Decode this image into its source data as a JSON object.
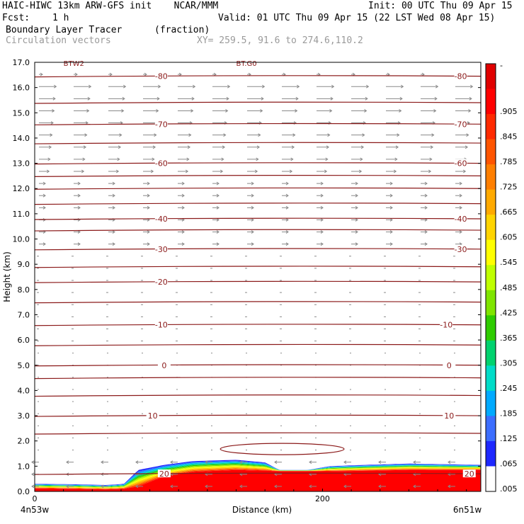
{
  "header": {
    "title_left": "HAIC-HIWC 13km ARW-GFS init    NCAR/MMM",
    "init": "Init: 00 UTC Thu 09 Apr 15",
    "fcst_label": "Fcst:",
    "fcst_value": "1 h",
    "valid": "Valid: 01 UTC Thu 09 Apr 15 (22 LST Wed 08 Apr 15)",
    "field_name": "Boundary Layer Tracer",
    "field_units": "(fraction)",
    "vectors_label": "Circulation vectors",
    "xy_label": "XY= 259.5, 91.6 to 274.6,110.2"
  },
  "chart_data": {
    "type": "heatmap",
    "title": "Boundary Layer Tracer",
    "xlabel": "Distance (km)",
    "ylabel": "Height (km)",
    "xlim": [
      0,
      310
    ],
    "ylim": [
      0,
      17
    ],
    "x_ticks": [
      {
        "v": 0,
        "label": "0"
      },
      {
        "v": 200,
        "label": "200"
      }
    ],
    "y_ticks": [
      "0.0",
      "1.0",
      "2.0",
      "3.0",
      "4.0",
      "5.0",
      "6.0",
      "7.0",
      "8.0",
      "9.0",
      "10.0",
      "11.0",
      "12.0",
      "13.0",
      "14.0",
      "15.0",
      "16.0",
      "17.0"
    ],
    "x_end_labels": {
      "left": "4n53w",
      "right": "6n51w"
    },
    "colorbar": {
      "labels": [
        "-",
        ".905",
        ".845",
        ".785",
        ".725",
        ".665",
        ".605",
        ".545",
        ".485",
        ".425",
        ".365",
        ".305",
        ".245",
        ".185",
        ".125",
        ".065",
        ".005"
      ],
      "colors": [
        "#e00000",
        "#ff0000",
        "#ff2a00",
        "#ff5500",
        "#ff7f00",
        "#ffaa00",
        "#ffd400",
        "#ffff00",
        "#bfff00",
        "#7fe500",
        "#2ecc00",
        "#00d26e",
        "#00dcc8",
        "#00aaff",
        "#3c6eff",
        "#1e28ff",
        "#ffffff"
      ]
    },
    "temperature_contours_C": [
      {
        "value": "-80",
        "y": 16.45,
        "labels_x": [
          88,
          296
        ]
      },
      {
        "value": "-70",
        "y": 14.55,
        "labels_x": [
          88,
          296
        ]
      },
      {
        "value": "-60",
        "y": 13.0,
        "labels_x": [
          88,
          296
        ]
      },
      {
        "value": "-40",
        "y": 10.8,
        "labels_x": [
          88,
          296
        ]
      },
      {
        "value": "-30",
        "y": 9.6,
        "labels_x": [
          88,
          296
        ]
      },
      {
        "value": "-20",
        "y": 8.3,
        "labels_x": [
          88,
          null
        ]
      },
      {
        "value": "-10",
        "y": 6.6,
        "labels_x": [
          88,
          286
        ]
      },
      {
        "value": "0",
        "y": 5.0,
        "labels_x": [
          90,
          288
        ]
      },
      {
        "value": "10",
        "y": 3.0,
        "labels_x": [
          82,
          288
        ]
      },
      {
        "value": "20",
        "y": 0.7,
        "labels_x": [
          90,
          302
        ]
      }
    ],
    "unlabeled_contour_levels": [
      15.4,
      13.8,
      12.5,
      12.0,
      11.4,
      10.35,
      8.9,
      7.5,
      5.8,
      4.5,
      3.8,
      2.3
    ],
    "top_labels": [
      "BTW2",
      "BT.G0"
    ],
    "tracer_profile": {
      "x_km": [
        0,
        30,
        50,
        62,
        72,
        90,
        110,
        140,
        160,
        170,
        190,
        205,
        230,
        260,
        310
      ],
      "top_km": [
        0.3,
        0.28,
        0.25,
        0.3,
        0.85,
        1.05,
        1.2,
        1.25,
        1.15,
        0.85,
        0.85,
        1.0,
        1.05,
        1.1,
        1.05
      ],
      "red_top_km": [
        0.12,
        0.1,
        0.08,
        0.1,
        0.2,
        0.6,
        0.78,
        0.85,
        0.82,
        0.8,
        0.8,
        0.8,
        0.82,
        0.85,
        0.85
      ]
    }
  }
}
